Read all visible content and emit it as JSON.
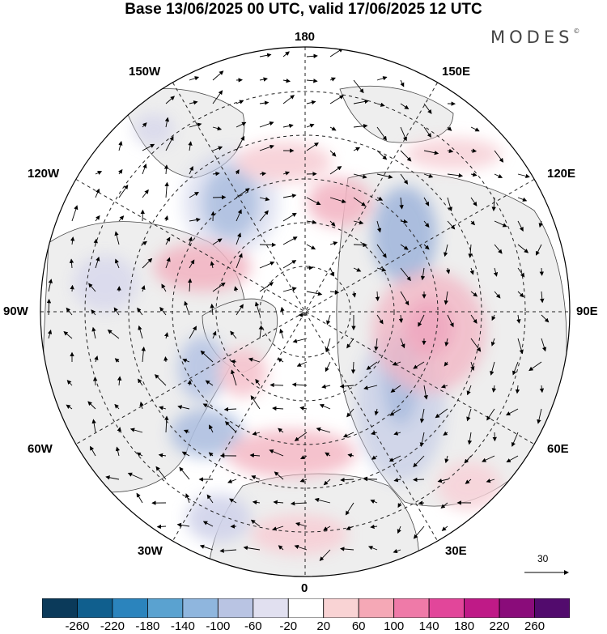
{
  "title": "Base 13/06/2025 00 UTC, valid 17/06/2025 12 UTC",
  "brand": "MODES",
  "brand_mark": "©",
  "longitude_labels": {
    "top": "180",
    "top_left": "150W",
    "top_right": "150E",
    "upper_left": "120W",
    "upper_right": "120E",
    "left": "90W",
    "right": "90E",
    "lower_left": "60W",
    "lower_right": "60E",
    "bottom_left": "30W",
    "bottom_right": "30E",
    "bottom": "0"
  },
  "wind_scale": {
    "label": "30"
  },
  "colorbar": {
    "colors": [
      "#0b3a5a",
      "#105f8e",
      "#2b84bd",
      "#5aa2d0",
      "#8fb6de",
      "#b9c4e3",
      "#e1e0f0",
      "#ffffff",
      "#f9d3d4",
      "#f5a8b6",
      "#ef7aa8",
      "#e2469a",
      "#bf1a87",
      "#8a0c7a",
      "#520b6d"
    ],
    "tick_labels": [
      "-260",
      "-220",
      "-180",
      "-140",
      "-100",
      "-60",
      "-20",
      "20",
      "60",
      "100",
      "140",
      "180",
      "220",
      "260"
    ]
  },
  "anomaly_colors": {
    "weak_negative": "#d9d9ec",
    "moderate_negative": "#9fb3dc",
    "strong_negative": "#6f9ccc",
    "weak_positive": "#f6d3d6",
    "moderate_positive": "#f0a9b9",
    "strong_positive": "#e06aa3",
    "land_gray": "#eeeeee"
  }
}
